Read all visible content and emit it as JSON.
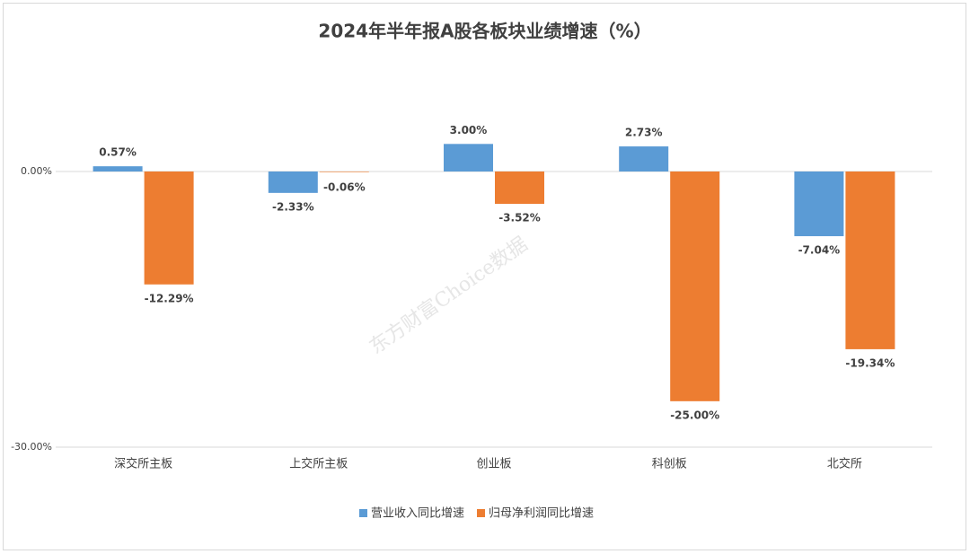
{
  "chart_data": {
    "type": "bar",
    "title": "2024年半年报A股各板块业绩增速（%）",
    "watermark": "东方财富Choice数据",
    "categories": [
      "深交所主板",
      "上交所主板",
      "创业板",
      "科创板",
      "北交所"
    ],
    "series": [
      {
        "name": "营业收入同比增速",
        "color": "#5b9bd5",
        "values": [
          0.57,
          -2.33,
          3.0,
          2.73,
          -7.04
        ],
        "value_labels": [
          "0.57%",
          "-2.33%",
          "3.00%",
          "2.73%",
          "-7.04%"
        ]
      },
      {
        "name": "归母净利润同比增速",
        "color": "#ed7d31",
        "values": [
          -12.29,
          -0.06,
          -3.52,
          -25.0,
          -19.34
        ],
        "value_labels": [
          "-12.29%",
          "-0.06%",
          "-3.52%",
          "-25.00%",
          "-19.34%"
        ]
      }
    ],
    "ylim": [
      -30,
      10
    ],
    "yticks": [
      {
        "value": 0,
        "label": "0.00%"
      },
      {
        "value": -30,
        "label": "-30.00%"
      }
    ],
    "grid": true,
    "legend": "bottom"
  }
}
